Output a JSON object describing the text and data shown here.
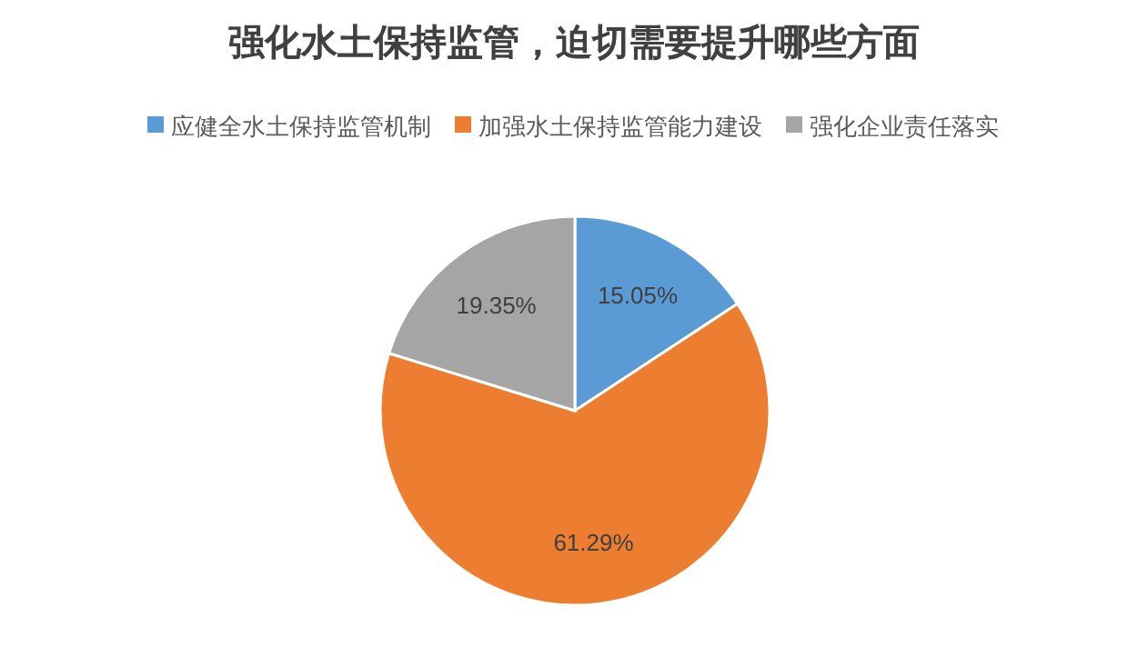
{
  "chart_data": {
    "type": "pie",
    "title": "强化水土保持监管，迫切需要提升哪些方面",
    "categories": [
      "应健全水土保持监管机制",
      "加强水土保持监管能力建设",
      "强化企业责任落实"
    ],
    "values": [
      15.05,
      61.29,
      19.35
    ],
    "colors": [
      "#5b9bd5",
      "#ed7d31",
      "#a5a5a5"
    ],
    "value_labels": [
      "15.05%",
      "61.29%",
      "19.35%"
    ],
    "legend": "top"
  }
}
